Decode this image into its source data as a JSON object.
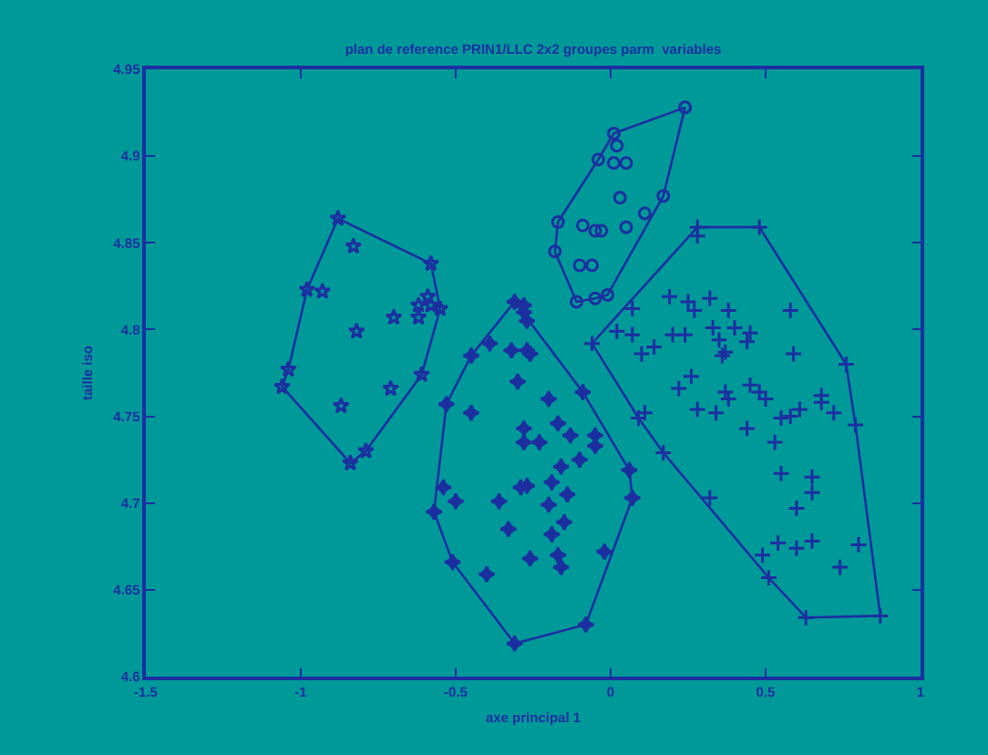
{
  "chart_data": {
    "type": "scatter",
    "title": "plan de reference PRIN1/LLC 2x2 groupes parm  variables",
    "xlabel": "axe principal 1",
    "ylabel": "taille iso",
    "xlim": [
      -1.5,
      1
    ],
    "xticks": [
      -1.5,
      -1,
      -0.5,
      0,
      0.5,
      1
    ],
    "ylim": [
      4.6,
      4.95
    ],
    "yticks": [
      4.6,
      4.65,
      4.7,
      4.75,
      4.8,
      4.85,
      4.9,
      4.95
    ],
    "grid": false,
    "series": [
      {
        "type": "scatter",
        "marker": "star",
        "color": "#1c2fa0",
        "x": [
          -0.88,
          -0.58,
          -0.55,
          -0.61,
          -0.79,
          -0.84,
          -1.06,
          -1.04,
          -0.98,
          -0.83,
          -0.93,
          -0.82,
          -0.7,
          -0.62,
          -0.62,
          -0.58,
          -0.59,
          -0.71,
          -0.87
        ],
        "values": [
          4.864,
          4.838,
          4.812,
          4.774,
          4.73,
          4.723,
          4.767,
          4.777,
          4.823,
          4.848,
          4.822,
          4.799,
          4.807,
          4.807,
          4.814,
          4.814,
          4.819,
          4.766,
          4.756
        ]
      },
      {
        "type": "line",
        "marker": "none",
        "line_style": "solid",
        "color": "#1c2fa0",
        "x": [
          -1.06,
          -1.04,
          -0.98,
          -0.88,
          -0.58,
          -0.55
        ],
        "values": [
          4.767,
          4.777,
          4.823,
          4.864,
          4.838,
          4.812
        ]
      },
      {
        "type": "line",
        "marker": "none",
        "line_style": "solid",
        "color": "#1c2fa0",
        "x": [
          -1.06,
          -0.84,
          -0.79,
          -0.61,
          -0.55
        ],
        "values": [
          4.767,
          4.723,
          4.73,
          4.774,
          4.812
        ]
      },
      {
        "type": "scatter",
        "marker": "circle",
        "color": "#1c2fa0",
        "x": [
          0.24,
          0.01,
          -0.04,
          -0.17,
          -0.18,
          -0.11,
          -0.05,
          -0.01,
          0.17,
          0.02,
          0.01,
          0.05,
          0.03,
          0.11,
          0.05,
          -0.09,
          -0.05,
          -0.03,
          -0.1,
          -0.06
        ],
        "values": [
          4.928,
          4.913,
          4.898,
          4.862,
          4.845,
          4.816,
          4.818,
          4.82,
          4.877,
          4.906,
          4.896,
          4.896,
          4.876,
          4.867,
          4.859,
          4.86,
          4.857,
          4.857,
          4.837,
          4.837
        ]
      },
      {
        "type": "line",
        "marker": "none",
        "line_style": "solid",
        "color": "#1c2fa0",
        "x": [
          -0.18,
          -0.17,
          -0.04,
          0.01,
          0.24
        ],
        "values": [
          4.845,
          4.862,
          4.898,
          4.913,
          4.928
        ]
      },
      {
        "type": "line",
        "marker": "none",
        "line_style": "solid",
        "color": "#1c2fa0",
        "x": [
          -0.18,
          -0.11,
          -0.05,
          -0.01,
          0.17,
          0.24
        ],
        "values": [
          4.845,
          4.816,
          4.818,
          4.82,
          4.877,
          4.928
        ]
      },
      {
        "type": "scatter",
        "marker": "diamond",
        "color": "#1c2fa0",
        "x": [
          -0.31,
          -0.28,
          -0.09,
          0.06,
          0.07,
          -0.08,
          -0.31,
          -0.51,
          -0.57,
          -0.53,
          -0.45,
          -0.28,
          -0.27,
          -0.39,
          -0.32,
          -0.27,
          -0.26,
          -0.3,
          -0.2,
          -0.45,
          -0.17,
          -0.28,
          -0.13,
          -0.05,
          -0.05,
          -0.28,
          -0.23,
          -0.1,
          -0.16,
          -0.19,
          -0.27,
          -0.29,
          -0.54,
          -0.14,
          -0.5,
          -0.36,
          -0.2,
          -0.15,
          -0.33,
          -0.19,
          -0.02,
          -0.26,
          -0.17,
          -0.16,
          -0.4
        ],
        "values": [
          4.816,
          4.814,
          4.764,
          4.719,
          4.703,
          4.63,
          4.619,
          4.666,
          4.695,
          4.757,
          4.785,
          4.81,
          4.805,
          4.792,
          4.788,
          4.788,
          4.786,
          4.77,
          4.76,
          4.752,
          4.746,
          4.743,
          4.739,
          4.739,
          4.733,
          4.735,
          4.735,
          4.725,
          4.721,
          4.712,
          4.71,
          4.709,
          4.709,
          4.705,
          4.701,
          4.701,
          4.699,
          4.689,
          4.685,
          4.682,
          4.672,
          4.668,
          4.67,
          4.663,
          4.659
        ]
      },
      {
        "type": "line",
        "marker": "none",
        "line_style": "solid",
        "color": "#1c2fa0",
        "x": [
          -0.57,
          -0.53,
          -0.45,
          -0.31,
          -0.09,
          0.06,
          0.07
        ],
        "values": [
          4.695,
          4.757,
          4.785,
          4.816,
          4.764,
          4.719,
          4.703
        ]
      },
      {
        "type": "line",
        "marker": "none",
        "line_style": "solid",
        "color": "#1c2fa0",
        "x": [
          -0.57,
          -0.51,
          -0.31,
          -0.08,
          0.07
        ],
        "values": [
          4.695,
          4.666,
          4.619,
          4.63,
          4.703
        ]
      },
      {
        "type": "scatter",
        "marker": "cross",
        "color": "#1c2fa0",
        "x": [
          0.28,
          0.48,
          0.76,
          0.79,
          0.87,
          0.63,
          0.51,
          0.17,
          0.09,
          -0.06,
          0.28,
          0.19,
          0.25,
          0.27,
          0.32,
          0.38,
          0.07,
          0.02,
          0.07,
          0.2,
          0.24,
          0.33,
          0.35,
          0.4,
          0.45,
          0.44,
          0.14,
          0.1,
          0.37,
          0.36,
          0.58,
          0.59,
          0.26,
          0.22,
          0.45,
          0.37,
          0.38,
          0.48,
          0.5,
          0.28,
          0.34,
          0.11,
          0.55,
          0.58,
          0.61,
          0.68,
          0.68,
          0.72,
          0.44,
          0.53,
          0.55,
          0.65,
          0.65,
          0.6,
          0.32,
          0.54,
          0.6,
          0.65,
          0.8,
          0.49,
          0.74
        ],
        "values": [
          4.859,
          4.859,
          4.78,
          4.745,
          4.635,
          4.634,
          4.657,
          4.729,
          4.749,
          4.792,
          4.854,
          4.819,
          4.816,
          4.811,
          4.818,
          4.811,
          4.812,
          4.799,
          4.797,
          4.797,
          4.797,
          4.801,
          4.794,
          4.801,
          4.798,
          4.793,
          4.79,
          4.786,
          4.787,
          4.785,
          4.811,
          4.786,
          4.773,
          4.766,
          4.768,
          4.764,
          4.76,
          4.764,
          4.76,
          4.754,
          4.752,
          4.752,
          4.749,
          4.75,
          4.754,
          4.762,
          4.758,
          4.752,
          4.743,
          4.735,
          4.717,
          4.715,
          4.706,
          4.697,
          4.703,
          4.677,
          4.674,
          4.678,
          4.676,
          4.67,
          4.663
        ]
      },
      {
        "type": "line",
        "marker": "none",
        "line_style": "solid",
        "color": "#1c2fa0",
        "x": [
          -0.06,
          0.28,
          0.48,
          0.76,
          0.79,
          0.87
        ],
        "values": [
          4.792,
          4.859,
          4.859,
          4.78,
          4.745,
          4.635
        ]
      },
      {
        "type": "line",
        "marker": "none",
        "line_style": "solid",
        "color": "#1c2fa0",
        "x": [
          -0.06,
          0.09,
          0.17,
          0.51,
          0.63,
          0.87
        ],
        "values": [
          4.792,
          4.749,
          4.729,
          4.657,
          4.634,
          4.635
        ]
      }
    ]
  }
}
